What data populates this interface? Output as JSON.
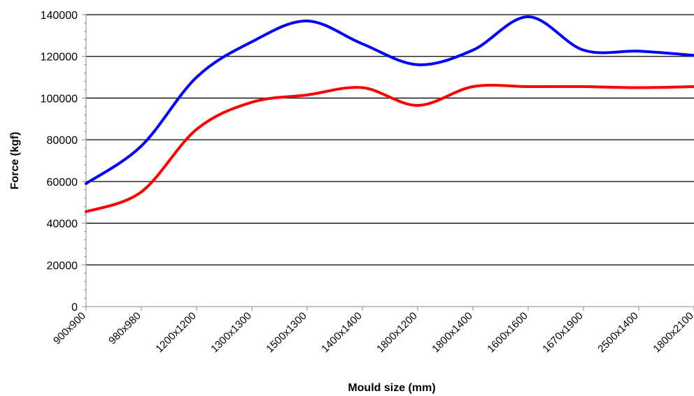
{
  "chart_data": {
    "type": "line",
    "title": "",
    "xlabel": "Mould size (mm)",
    "ylabel": "Force (kgf)",
    "categories": [
      "900x900",
      "980x980",
      "1200x1200",
      "1300x1300",
      "1500x1300",
      "1400x1400",
      "1800x1200",
      "1800x1400",
      "1600x1600",
      "1670x1900",
      "2500x1400",
      "1800x2100"
    ],
    "ylim": [
      0,
      140000
    ],
    "yticks": [
      0,
      20000,
      40000,
      60000,
      80000,
      100000,
      120000,
      140000
    ],
    "ytick_labels": [
      "0",
      "20000",
      "40000",
      "60000",
      "80000",
      "100000",
      "120000",
      "140000"
    ],
    "grid": true,
    "series": [
      {
        "color": "#0000ff",
        "values": [
          59000,
          77000,
          110000,
          127000,
          137000,
          126000,
          116000,
          123000,
          139000,
          123000,
          122500,
          120500
        ]
      },
      {
        "color": "#ff0000",
        "values": [
          45500,
          55000,
          85000,
          98000,
          101500,
          105000,
          96500,
          105500,
          105500,
          105500,
          105000,
          105500
        ]
      }
    ]
  }
}
